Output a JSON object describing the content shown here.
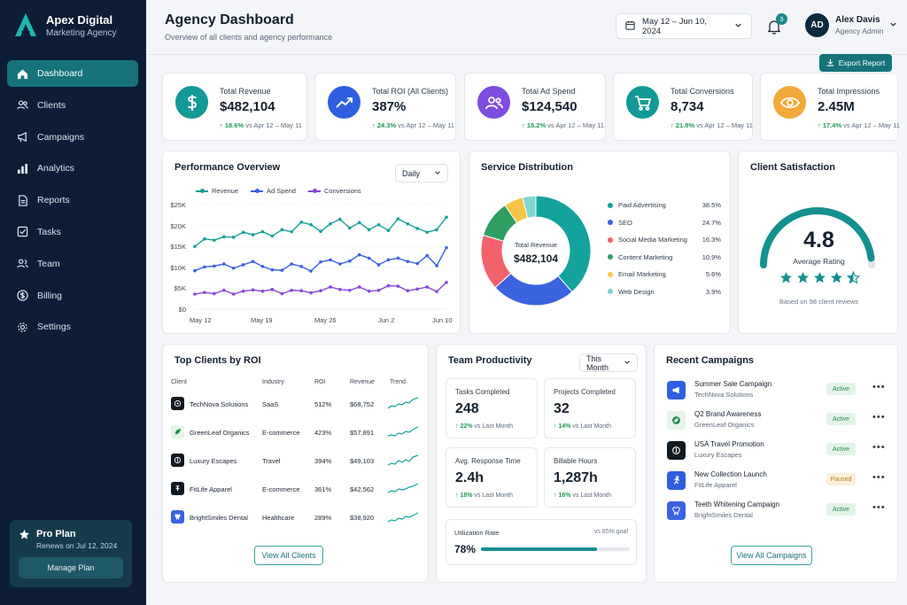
{
  "brand": {
    "name": "Apex Digital",
    "subtitle": "Marketing Agency"
  },
  "nav": [
    {
      "label": "Dashboard",
      "icon": "home-icon",
      "active": true
    },
    {
      "label": "Clients",
      "icon": "users-icon"
    },
    {
      "label": "Campaigns",
      "icon": "megaphone-icon"
    },
    {
      "label": "Analytics",
      "icon": "bar-chart-icon"
    },
    {
      "label": "Reports",
      "icon": "document-icon"
    },
    {
      "label": "Tasks",
      "icon": "checkbox-icon"
    },
    {
      "label": "Team",
      "icon": "team-icon"
    },
    {
      "label": "Billing",
      "icon": "dollar-icon"
    },
    {
      "label": "Settings",
      "icon": "gear-icon"
    }
  ],
  "plan": {
    "title": "Pro Plan",
    "renews": "Renews on Jul 12, 2024",
    "button": "Manage Plan"
  },
  "header": {
    "title": "Agency Dashboard",
    "subtitle": "Overview of all clients and agency performance",
    "date_range": "May 12 – Jun 10, 2024",
    "notifications": "3",
    "export": "Export Report"
  },
  "user": {
    "initials": "AD",
    "name": "Alex Davis",
    "role": "Agency Admin"
  },
  "kpis": [
    {
      "label": "Total Revenue",
      "value": "$482,104",
      "delta": "18.6%",
      "compare": "vs Apr 12 – May 11",
      "icon": "dollar-icon",
      "color": "#129a96"
    },
    {
      "label": "Total ROI (All Clients)",
      "value": "387%",
      "delta": "24.3%",
      "compare": "vs Apr 12 – May 11",
      "icon": "trend-up-icon",
      "color": "#2f5fe0"
    },
    {
      "label": "Total Ad Spend",
      "value": "$124,540",
      "delta": "15.2%",
      "compare": "vs Apr 12 – May 11",
      "icon": "users-icon",
      "color": "#7c4ddf"
    },
    {
      "label": "Total Conversions",
      "value": "8,734",
      "delta": "21.8%",
      "compare": "vs Apr 12 – May 11",
      "icon": "cart-icon",
      "color": "#129a96"
    },
    {
      "label": "Total Impressions",
      "value": "2.45M",
      "delta": "17.4%",
      "compare": "vs Apr 12 – May 11",
      "icon": "eye-icon",
      "color": "#f3a93a"
    }
  ],
  "performance": {
    "title": "Performance Overview",
    "period": "Daily",
    "chart_data": {
      "type": "line",
      "ylim": [
        0,
        25000
      ],
      "y_ticks": [
        "$0",
        "$5K",
        "$10K",
        "$15K",
        "$20K",
        "$25K"
      ],
      "x_ticks": [
        "May 12",
        "May 19",
        "May 26",
        "Jun 2",
        "Jun 10"
      ],
      "series": [
        {
          "name": "Revenue",
          "color": "#19a097",
          "values": [
            15000,
            16800,
            16500,
            17300,
            17200,
            18400,
            17800,
            18500,
            17500,
            19000,
            18500,
            20800,
            20200,
            18600,
            20400,
            21500,
            19400,
            20700,
            19000,
            20200,
            18800,
            21600,
            20400,
            19300,
            18400,
            19000,
            22000
          ]
        },
        {
          "name": "Ad Spend",
          "color": "#3b62df",
          "values": [
            9200,
            10100,
            10300,
            10800,
            9800,
            10600,
            11400,
            10200,
            9400,
            9300,
            10800,
            10200,
            9100,
            11300,
            11800,
            10800,
            11500,
            13000,
            12200,
            10600,
            11800,
            12200,
            11400,
            10900,
            12800,
            10400,
            14700
          ]
        },
        {
          "name": "Conversions",
          "color": "#8645d8",
          "values": [
            3600,
            4000,
            3700,
            4500,
            3600,
            4300,
            4600,
            4300,
            4700,
            3700,
            4500,
            4400,
            3900,
            4400,
            5300,
            4700,
            4500,
            5300,
            4300,
            4500,
            5600,
            5500,
            4400,
            4800,
            5300,
            4200,
            6400
          ]
        }
      ]
    }
  },
  "distribution": {
    "title": "Service Distribution",
    "center_label": "Total Revenue",
    "center_value": "$482,104",
    "chart_data": {
      "type": "pie",
      "slices": [
        {
          "name": "Paid Advertising",
          "value": 38.5,
          "label": "38.5%",
          "color": "#13a39c"
        },
        {
          "name": "SEO",
          "value": 24.7,
          "label": "24.7%",
          "color": "#3b62df"
        },
        {
          "name": "Social Media Marketing",
          "value": 16.3,
          "label": "16.3%",
          "color": "#f2626a"
        },
        {
          "name": "Content Marketing",
          "value": 10.9,
          "label": "10.9%",
          "color": "#2f9e63"
        },
        {
          "name": "Email Marketing",
          "value": 5.6,
          "label": "5.6%",
          "color": "#f6c444"
        },
        {
          "name": "Web Design",
          "value": 3.9,
          "label": "3.9%",
          "color": "#7fd6cf"
        }
      ]
    }
  },
  "satisfaction": {
    "title": "Client Satisfaction",
    "score": "4.8",
    "score_value": 4.8,
    "score_max": 5,
    "label": "Average Rating",
    "note": "Based on 98 client reviews",
    "stars": 4.5
  },
  "top_clients": {
    "title": "Top Clients by ROI",
    "headers": [
      "Client",
      "Industry",
      "ROI",
      "Revenue",
      "Trend"
    ],
    "rows": [
      {
        "client": "TechNova Solutions",
        "industry": "SaaS",
        "roi": "512%",
        "revenue": "$68,752",
        "logo_color": "#101820"
      },
      {
        "client": "GreenLeaf Organics",
        "industry": "E-commerce",
        "roi": "423%",
        "revenue": "$57,891",
        "logo_color": "#1f8e4b"
      },
      {
        "client": "Luxury Escapes",
        "industry": "Travel",
        "roi": "394%",
        "revenue": "$49,103",
        "logo_color": "#101820"
      },
      {
        "client": "FitLife Apparel",
        "industry": "E-commerce",
        "roi": "361%",
        "revenue": "$42,562",
        "logo_color": "#101820"
      },
      {
        "client": "BrightSmiles Dental",
        "industry": "Healthcare",
        "roi": "289%",
        "revenue": "$38,920",
        "logo_color": "#3b62df"
      }
    ],
    "button": "View All Clients"
  },
  "productivity": {
    "title": "Team Productivity",
    "period": "This Month",
    "cards": [
      {
        "label": "Tasks Completed",
        "value": "248",
        "delta": "22%",
        "compare": "vs Last Month"
      },
      {
        "label": "Projects Completed",
        "value": "32",
        "delta": "14%",
        "compare": "vs Last Month"
      },
      {
        "label": "Avg. Response Time",
        "value": "2.4h",
        "delta": "18%",
        "compare": "vs Last Month"
      },
      {
        "label": "Billable Hours",
        "value": "1,287h",
        "delta": "16%",
        "compare": "vs Last Month"
      }
    ],
    "utilization": {
      "label": "Utilization Rate",
      "goal": "vs 85% goal",
      "value": "78%",
      "fraction": 0.78
    }
  },
  "campaigns": {
    "title": "Recent Campaigns",
    "items": [
      {
        "name": "Summer Sale Campaign",
        "client": "TechNova Solutions",
        "status": "Active",
        "icon_color": "#2f5fe0"
      },
      {
        "name": "Q2 Brand Awareness",
        "client": "GreenLeaf Organics",
        "status": "Active",
        "icon_color": "#1f8e4b"
      },
      {
        "name": "USA Travel Promotion",
        "client": "Luxury Escapes",
        "status": "Active",
        "icon_color": "#101820"
      },
      {
        "name": "New Collection Launch",
        "client": "FitLife Apparel",
        "status": "Paused",
        "icon_color": "#2f5fe0"
      },
      {
        "name": "Teeth Whitening Campaign",
        "client": "BrightSmiles Dental",
        "status": "Active",
        "icon_color": "#3b62df"
      }
    ],
    "button": "View All Campaigns"
  }
}
